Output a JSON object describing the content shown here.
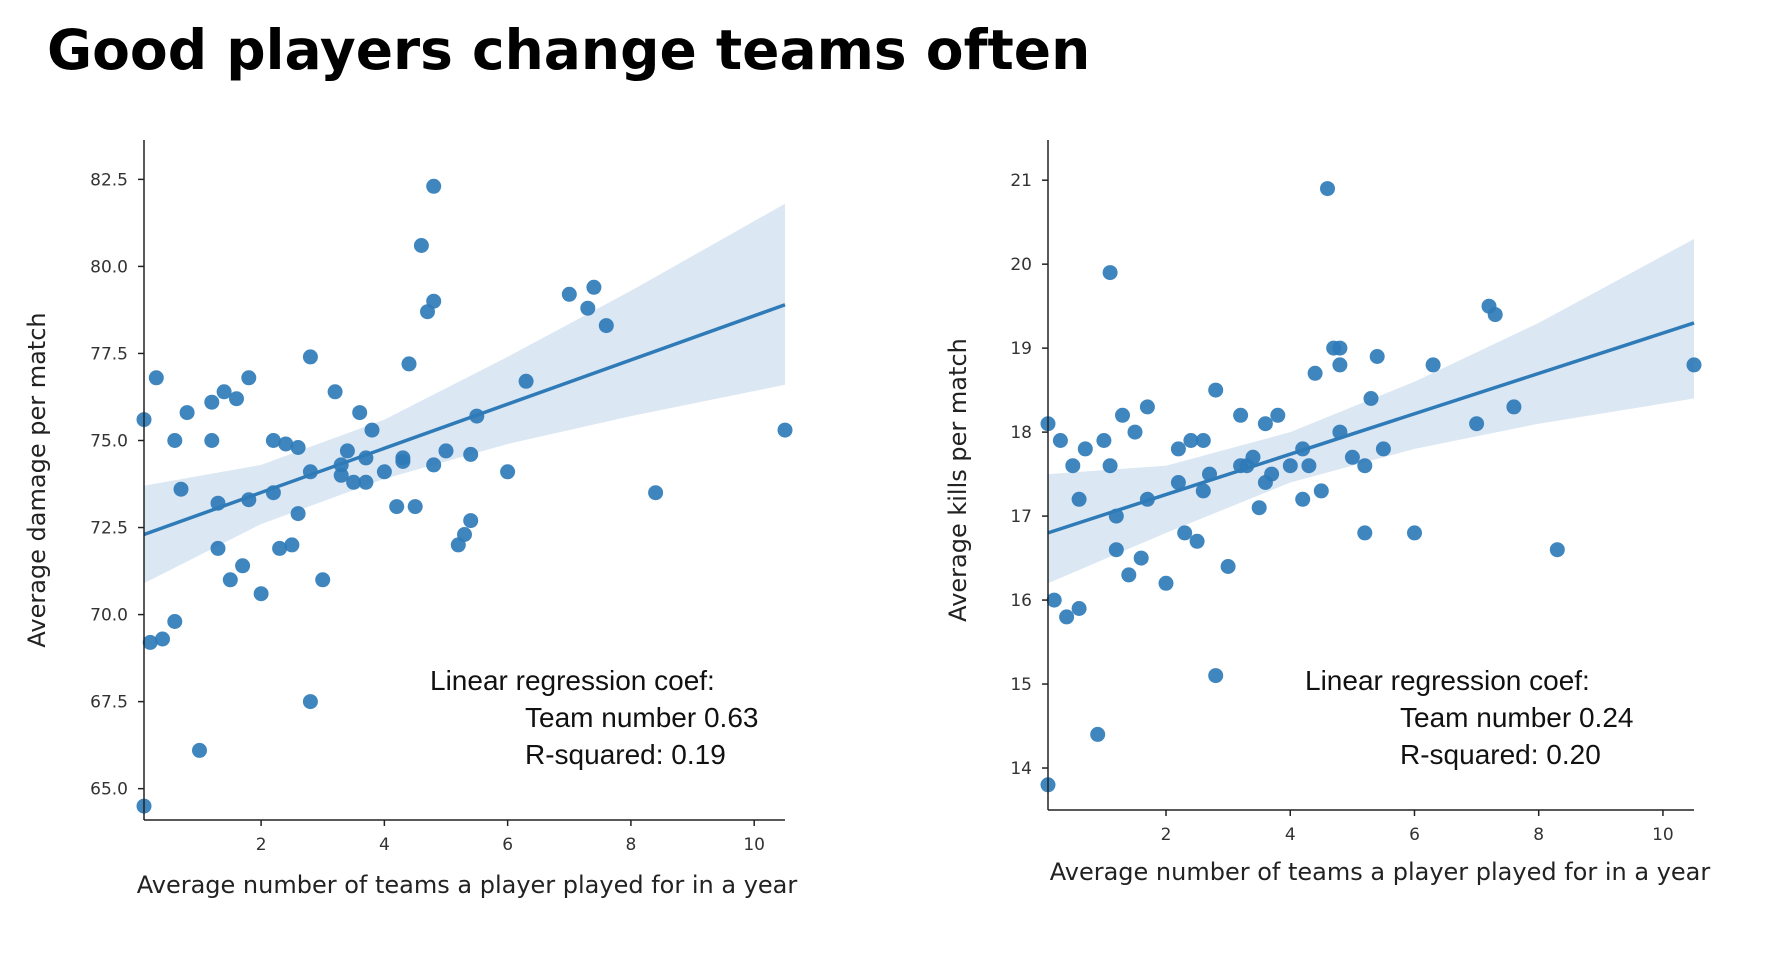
{
  "title": "Good players change teams often",
  "chart_data": [
    {
      "type": "scatter",
      "xlabel": "Average number of teams a player played for in a year",
      "ylabel": "Average damage per match",
      "xlim": [
        0.1,
        10.5
      ],
      "ylim": [
        64.1,
        83.2
      ],
      "xticks": [
        2,
        4,
        6,
        8,
        10
      ],
      "yticks": [
        65.0,
        67.5,
        70.0,
        72.5,
        75.0,
        77.5,
        80.0,
        82.5
      ],
      "ytick_labels": [
        "65.0",
        "67.5",
        "70.0",
        "72.5",
        "75.0",
        "77.5",
        "80.0",
        "82.5"
      ],
      "xtick_labels": [
        "2",
        "4",
        "6",
        "8",
        "10"
      ],
      "color": "#2f7bb8",
      "band_color": "#dbe7f3",
      "grid": false,
      "points": [
        [
          0.1,
          75.6
        ],
        [
          0.1,
          64.5
        ],
        [
          0.2,
          69.2
        ],
        [
          0.3,
          76.8
        ],
        [
          0.4,
          69.3
        ],
        [
          0.6,
          75.0
        ],
        [
          0.6,
          69.8
        ],
        [
          0.7,
          73.6
        ],
        [
          0.8,
          75.8
        ],
        [
          1.0,
          66.1
        ],
        [
          1.2,
          76.1
        ],
        [
          1.2,
          75.0
        ],
        [
          1.3,
          73.2
        ],
        [
          1.3,
          71.9
        ],
        [
          1.4,
          76.4
        ],
        [
          1.5,
          71.0
        ],
        [
          1.6,
          76.2
        ],
        [
          1.7,
          71.4
        ],
        [
          1.8,
          73.3
        ],
        [
          1.8,
          76.8
        ],
        [
          2.0,
          70.6
        ],
        [
          2.2,
          75.0
        ],
        [
          2.2,
          73.5
        ],
        [
          2.3,
          71.9
        ],
        [
          2.4,
          74.9
        ],
        [
          2.5,
          72.0
        ],
        [
          2.6,
          74.8
        ],
        [
          2.6,
          72.9
        ],
        [
          2.8,
          77.4
        ],
        [
          2.8,
          74.1
        ],
        [
          2.8,
          67.5
        ],
        [
          3.0,
          71.0
        ],
        [
          3.2,
          76.4
        ],
        [
          3.3,
          74.0
        ],
        [
          3.3,
          74.3
        ],
        [
          3.4,
          74.7
        ],
        [
          3.5,
          73.8
        ],
        [
          3.6,
          75.8
        ],
        [
          3.7,
          74.5
        ],
        [
          3.7,
          73.8
        ],
        [
          3.8,
          75.3
        ],
        [
          4.0,
          74.1
        ],
        [
          4.2,
          73.1
        ],
        [
          4.3,
          74.5
        ],
        [
          4.3,
          74.4
        ],
        [
          4.4,
          77.2
        ],
        [
          4.5,
          73.1
        ],
        [
          4.6,
          80.6
        ],
        [
          4.7,
          78.7
        ],
        [
          4.8,
          79.0
        ],
        [
          4.8,
          74.3
        ],
        [
          4.8,
          82.3
        ],
        [
          5.0,
          74.7
        ],
        [
          5.2,
          72.0
        ],
        [
          5.3,
          72.3
        ],
        [
          5.4,
          74.6
        ],
        [
          5.4,
          72.7
        ],
        [
          5.5,
          75.7
        ],
        [
          6.0,
          74.1
        ],
        [
          6.3,
          76.7
        ],
        [
          7.0,
          79.2
        ],
        [
          7.3,
          78.8
        ],
        [
          7.4,
          79.4
        ],
        [
          7.6,
          78.3
        ],
        [
          8.4,
          73.5
        ],
        [
          10.5,
          75.3
        ]
      ],
      "regression_line": {
        "x": [
          0.1,
          10.5
        ],
        "y": [
          72.3,
          78.9
        ]
      },
      "confidence_band": {
        "x": [
          0.1,
          2,
          4,
          6,
          8,
          10.5
        ],
        "upper": [
          73.7,
          74.3,
          75.6,
          77.4,
          79.3,
          81.8
        ],
        "lower": [
          70.9,
          72.6,
          73.9,
          74.9,
          75.7,
          76.6
        ]
      },
      "annotation": {
        "line1": "Linear regression coef:",
        "line2": "Team number  0.63",
        "line3": "R-squared:  0.19"
      }
    },
    {
      "type": "scatter",
      "xlabel": "Average number of teams a player played for in a year",
      "ylabel": "Average kills per match",
      "xlim": [
        0.1,
        10.5
      ],
      "ylim": [
        13.5,
        21.3
      ],
      "xticks": [
        2,
        4,
        6,
        8,
        10
      ],
      "yticks": [
        14,
        15,
        16,
        17,
        18,
        19,
        20,
        21
      ],
      "ytick_labels": [
        "14",
        "15",
        "16",
        "17",
        "18",
        "19",
        "20",
        "21"
      ],
      "xtick_labels": [
        "2",
        "4",
        "6",
        "8",
        "10"
      ],
      "color": "#2f7bb8",
      "band_color": "#dbe7f3",
      "grid": false,
      "points": [
        [
          0.1,
          18.1
        ],
        [
          0.1,
          13.8
        ],
        [
          0.2,
          16.0
        ],
        [
          0.3,
          17.9
        ],
        [
          0.4,
          15.8
        ],
        [
          0.5,
          17.6
        ],
        [
          0.6,
          15.9
        ],
        [
          0.6,
          17.2
        ],
        [
          0.7,
          17.8
        ],
        [
          0.9,
          14.4
        ],
        [
          1.0,
          17.9
        ],
        [
          1.1,
          19.9
        ],
        [
          1.1,
          17.6
        ],
        [
          1.2,
          17.0
        ],
        [
          1.2,
          16.6
        ],
        [
          1.3,
          18.2
        ],
        [
          1.4,
          16.3
        ],
        [
          1.5,
          18.0
        ],
        [
          1.6,
          16.5
        ],
        [
          1.7,
          18.3
        ],
        [
          1.7,
          17.2
        ],
        [
          2.0,
          16.2
        ],
        [
          2.2,
          17.8
        ],
        [
          2.2,
          17.4
        ],
        [
          2.3,
          16.8
        ],
        [
          2.4,
          17.9
        ],
        [
          2.5,
          16.7
        ],
        [
          2.6,
          17.9
        ],
        [
          2.6,
          17.3
        ],
        [
          2.7,
          17.5
        ],
        [
          2.8,
          18.5
        ],
        [
          2.8,
          15.1
        ],
        [
          3.0,
          16.4
        ],
        [
          3.2,
          18.2
        ],
        [
          3.2,
          17.6
        ],
        [
          3.3,
          17.6
        ],
        [
          3.4,
          17.7
        ],
        [
          3.5,
          17.1
        ],
        [
          3.6,
          18.1
        ],
        [
          3.6,
          17.4
        ],
        [
          3.7,
          17.5
        ],
        [
          3.8,
          18.2
        ],
        [
          4.0,
          17.6
        ],
        [
          4.2,
          17.2
        ],
        [
          4.2,
          17.8
        ],
        [
          4.3,
          17.6
        ],
        [
          4.4,
          18.7
        ],
        [
          4.5,
          17.3
        ],
        [
          4.6,
          20.9
        ],
        [
          4.7,
          19.0
        ],
        [
          4.8,
          18.0
        ],
        [
          4.8,
          19.0
        ],
        [
          4.8,
          18.8
        ],
        [
          5.0,
          17.7
        ],
        [
          5.2,
          17.6
        ],
        [
          5.2,
          16.8
        ],
        [
          5.3,
          18.4
        ],
        [
          5.4,
          18.9
        ],
        [
          5.5,
          17.8
        ],
        [
          6.0,
          16.8
        ],
        [
          6.3,
          18.8
        ],
        [
          7.0,
          18.1
        ],
        [
          7.2,
          19.5
        ],
        [
          7.3,
          19.4
        ],
        [
          7.6,
          18.3
        ],
        [
          8.3,
          16.6
        ],
        [
          10.5,
          18.8
        ]
      ],
      "regression_line": {
        "x": [
          0.1,
          10.5
        ],
        "y": [
          16.8,
          19.3
        ]
      },
      "confidence_band": {
        "x": [
          0.1,
          2,
          4,
          6,
          8,
          10.5
        ],
        "upper": [
          17.5,
          17.6,
          18.0,
          18.6,
          19.3,
          20.3
        ],
        "lower": [
          16.2,
          16.8,
          17.4,
          17.8,
          18.1,
          18.4
        ]
      },
      "annotation": {
        "line1": "Linear regression coef:",
        "line2": "Team number  0.24",
        "line3": "R-squared:  0.20"
      }
    }
  ]
}
